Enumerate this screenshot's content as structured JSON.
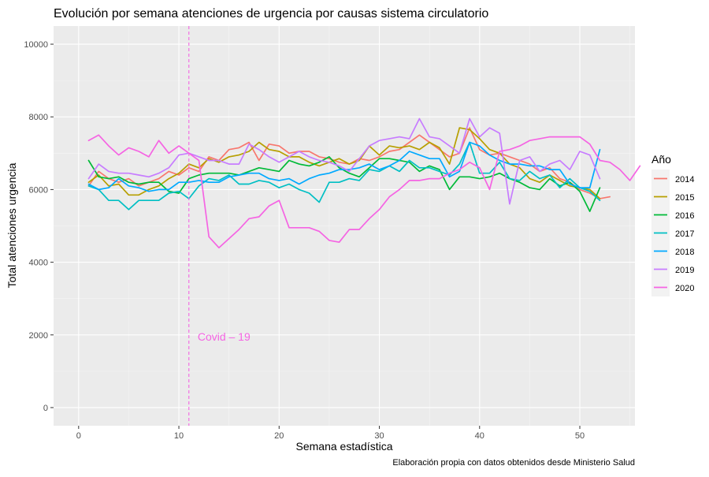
{
  "chart_data": {
    "type": "line",
    "title": "Evolución por semana atenciones de urgencia por causas sistema circulatorio",
    "xlabel": "Semana estadística",
    "ylabel": "Total atenciones urgencia",
    "caption": "Elaboración propia con datos obtenidos desde Ministerio Salud",
    "xlim": [
      -2.5,
      55.5
    ],
    "ylim": [
      -500,
      10500
    ],
    "x_ticks": [
      0,
      10,
      20,
      30,
      40,
      50
    ],
    "y_ticks": [
      0,
      2000,
      4000,
      6000,
      8000,
      10000
    ],
    "y_tick_labels": [
      "0",
      "2000",
      "4000",
      "6000",
      "8000",
      "10000"
    ],
    "grid": true,
    "legend": {
      "title": "Año",
      "position": "right"
    },
    "annotation": {
      "text": "Covid – 19",
      "x": 14.5,
      "y": 1950,
      "vline_x": 11,
      "color": "#F564E3"
    },
    "series": [
      {
        "name": "2014",
        "color": "#F8766D",
        "values": [
          6100,
          6500,
          6300,
          6200,
          6300,
          6100,
          6200,
          6300,
          6500,
          6400,
          6600,
          6500,
          6900,
          6800,
          7100,
          7150,
          7300,
          6800,
          7250,
          7200,
          7000,
          7050,
          7050,
          6900,
          6850,
          6750,
          6700,
          6850,
          6800,
          6900,
          7050,
          7100,
          7300,
          7500,
          7300,
          7100,
          6900,
          7000,
          7700,
          7100,
          6950,
          7000,
          6900,
          6800,
          6700,
          6500,
          6600,
          6300,
          6200,
          6000,
          5900,
          5750,
          5800
        ]
      },
      {
        "name": "2015",
        "color": "#B79F00",
        "values": [
          6200,
          6400,
          6100,
          6150,
          5850,
          5850,
          6000,
          6100,
          6300,
          6450,
          6700,
          6600,
          6850,
          6750,
          6900,
          6950,
          7050,
          7300,
          7100,
          7050,
          6900,
          6900,
          6750,
          6650,
          6750,
          6850,
          6700,
          6800,
          7200,
          6950,
          7200,
          7150,
          7200,
          7100,
          7300,
          7150,
          6700,
          7700,
          7650,
          7400,
          7100,
          7000,
          6700,
          6600,
          6300,
          6200,
          6400,
          6250,
          6100,
          6050,
          6000,
          5750
        ]
      },
      {
        "name": "2016",
        "color": "#00BA38",
        "values": [
          6800,
          6350,
          6300,
          6350,
          6200,
          6150,
          6200,
          6200,
          5950,
          5900,
          6300,
          6400,
          6450,
          6450,
          6450,
          6400,
          6500,
          6600,
          6550,
          6500,
          6800,
          6700,
          6650,
          6750,
          6900,
          6600,
          6450,
          6350,
          6600,
          6850,
          6850,
          6800,
          6750,
          6500,
          6650,
          6550,
          6000,
          6350,
          6350,
          6300,
          6350,
          6450,
          6300,
          6200,
          6050,
          6000,
          6300,
          6100,
          6200,
          5950,
          5400,
          6050
        ]
      },
      {
        "name": "2017",
        "color": "#00BFC4",
        "values": [
          6100,
          6000,
          5700,
          5700,
          5450,
          5700,
          5700,
          5700,
          5900,
          5950,
          5750,
          6100,
          6300,
          6250,
          6400,
          6150,
          6150,
          6250,
          6200,
          6050,
          6150,
          6000,
          5900,
          5650,
          6200,
          6200,
          6300,
          6250,
          6550,
          6500,
          6650,
          6500,
          6800,
          6600,
          6600,
          6500,
          6400,
          6700,
          7300,
          6450,
          6450,
          6750,
          6300,
          6250,
          6500,
          6300,
          6400,
          6050,
          6300,
          6050,
          5950,
          5700
        ]
      },
      {
        "name": "2018",
        "color": "#00A9FF",
        "values": [
          6150,
          6000,
          6050,
          6300,
          6100,
          6050,
          5950,
          6000,
          6000,
          6200,
          6200,
          6250,
          6200,
          6200,
          6350,
          6400,
          6450,
          6450,
          6300,
          6250,
          6300,
          6150,
          6300,
          6400,
          6450,
          6550,
          6550,
          6600,
          6700,
          6550,
          6650,
          6800,
          7050,
          6950,
          6850,
          6850,
          6350,
          6500,
          7300,
          7200,
          6950,
          6800,
          6700,
          6700,
          6650,
          6650,
          6550,
          6550,
          6150,
          6050,
          6050,
          7100
        ]
      },
      {
        "name": "2019",
        "color": "#C77CFF",
        "values": [
          6300,
          6700,
          6500,
          6450,
          6450,
          6400,
          6350,
          6450,
          6600,
          6950,
          7000,
          6900,
          6800,
          6800,
          6700,
          6700,
          7250,
          7100,
          6900,
          6750,
          6900,
          7050,
          6900,
          6800,
          6750,
          6650,
          6500,
          6850,
          7200,
          7350,
          7400,
          7450,
          7400,
          7950,
          7450,
          7400,
          7200,
          7000,
          7950,
          7450,
          7700,
          7550,
          5600,
          6800,
          6900,
          6500,
          6700,
          6800,
          6550,
          7050,
          6950,
          6300
        ]
      },
      {
        "name": "2020",
        "color": "#F564E3",
        "values": [
          7350,
          7500,
          7200,
          6950,
          7150,
          7050,
          6900,
          7350,
          7000,
          7200,
          7000,
          6800,
          4700,
          4400,
          4650,
          4900,
          5200,
          5250,
          5550,
          5700,
          4950,
          4950,
          4950,
          4850,
          4600,
          4550,
          4900,
          4900,
          5200,
          5450,
          5800,
          6000,
          6250,
          6250,
          6300,
          6300,
          6450,
          6550,
          6750,
          6600,
          6000,
          7050,
          7100,
          7200,
          7350,
          7400,
          7450,
          7450,
          7450,
          7450,
          7250,
          6800,
          6750,
          6550,
          6250,
          6650
        ]
      }
    ]
  }
}
